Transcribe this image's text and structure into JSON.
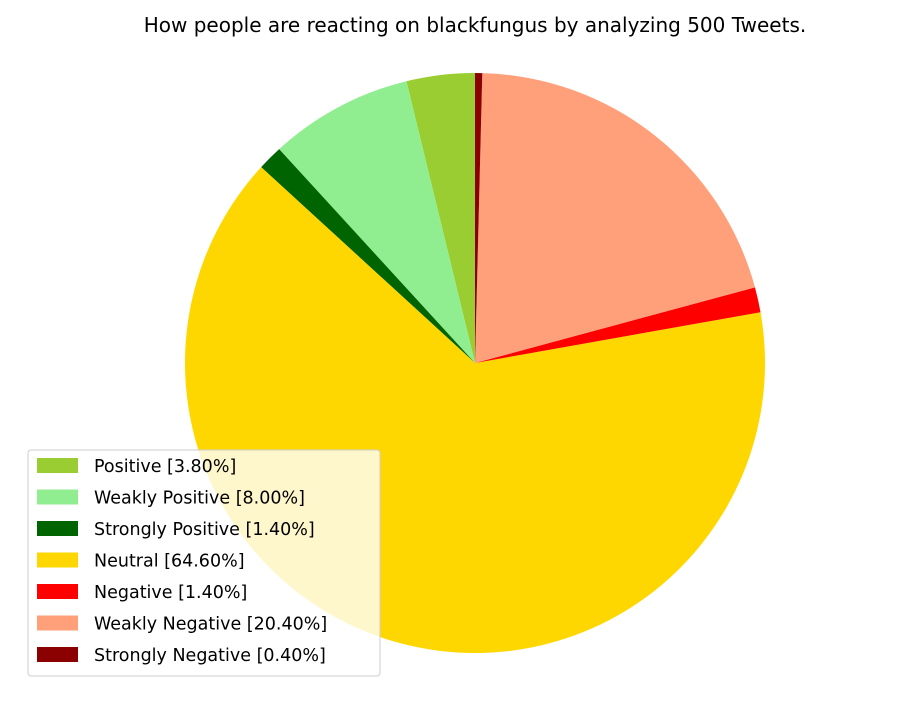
{
  "chart_data": {
    "type": "pie",
    "title": "How people are reacting on blackfungus by analyzing 500 Tweets.",
    "legend_position": "lower-left",
    "slices": [
      {
        "label": "Positive [3.80%]",
        "value": 3.8,
        "color": "#9acd32"
      },
      {
        "label": "Weakly Positive [8.00%]",
        "value": 8.0,
        "color": "#90ee90"
      },
      {
        "label": "Strongly Positive [1.40%]",
        "value": 1.4,
        "color": "#006400"
      },
      {
        "label": "Neutral [64.60%]",
        "value": 64.6,
        "color": "#ffd700"
      },
      {
        "label": "Negative [1.40%]",
        "value": 1.4,
        "color": "#ff0000"
      },
      {
        "label": "Weakly Negative [20.40%]",
        "value": 20.4,
        "color": "#ffa07a"
      },
      {
        "label": "Strongly Negative [0.40%]",
        "value": 0.4,
        "color": "#8b0000"
      }
    ]
  }
}
